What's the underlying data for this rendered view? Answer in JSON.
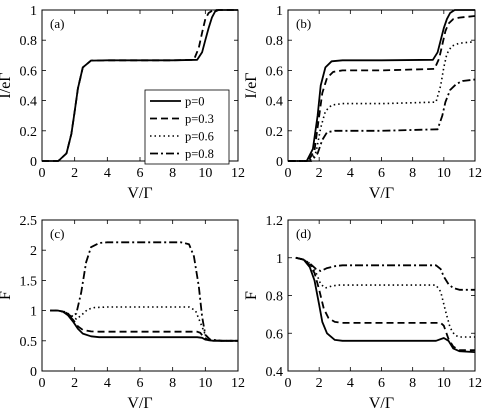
{
  "chart_data": [
    {
      "type": "line",
      "panel_label": "(a)",
      "xlabel": "V/Γ",
      "ylabel": "I/eΓ",
      "xlim": [
        0,
        12
      ],
      "ylim": [
        0,
        1
      ],
      "xticks": [
        "0",
        "2",
        "4",
        "6",
        "8",
        "10",
        "12"
      ],
      "yticks": [
        "0",
        "0.2",
        "0.4",
        "0.6",
        "0.8",
        "1"
      ],
      "legend": {
        "position": "lower-right",
        "entries": [
          {
            "label": "p=0",
            "style": "solid"
          },
          {
            "label": "p=0.3",
            "style": "dashed"
          },
          {
            "label": "p=0.6",
            "style": "dotted"
          },
          {
            "label": "p=0.8",
            "style": "dashdot"
          }
        ]
      },
      "series": [
        {
          "style": "solid",
          "x": [
            0,
            1.0,
            1.5,
            1.8,
            2.0,
            2.2,
            2.5,
            3.0,
            4,
            6,
            8,
            9.5,
            9.8,
            10.0,
            10.2,
            10.4,
            10.6,
            10.8,
            11,
            12
          ],
          "y": [
            0,
            0.0,
            0.05,
            0.18,
            0.33,
            0.48,
            0.62,
            0.665,
            0.667,
            0.667,
            0.667,
            0.67,
            0.72,
            0.8,
            0.88,
            0.95,
            0.99,
            1.0,
            1.0,
            1.0
          ]
        },
        {
          "style": "dashed",
          "x": [
            0,
            1.0,
            1.5,
            1.8,
            2.0,
            2.2,
            2.5,
            3.0,
            4,
            6,
            8,
            9.3,
            9.6,
            9.8,
            10.0,
            10.2,
            10.5,
            12
          ],
          "y": [
            0,
            0.0,
            0.05,
            0.18,
            0.33,
            0.48,
            0.62,
            0.665,
            0.667,
            0.667,
            0.667,
            0.67,
            0.75,
            0.85,
            0.94,
            0.98,
            1.0,
            1.0
          ]
        }
      ]
    },
    {
      "type": "line",
      "panel_label": "(b)",
      "xlabel": "V/Γ",
      "ylabel": "I/eΓ",
      "xlim": [
        0,
        12
      ],
      "ylim": [
        0,
        1
      ],
      "xticks": [
        "0",
        "2",
        "4",
        "6",
        "8",
        "10",
        "12"
      ],
      "yticks": [
        "0",
        "0.2",
        "0.4",
        "0.6",
        "0.8",
        "1"
      ],
      "series": [
        {
          "style": "solid",
          "x": [
            0,
            1.2,
            1.6,
            1.9,
            2.1,
            2.4,
            2.8,
            3.5,
            6,
            9.3,
            9.6,
            9.8,
            10.0,
            10.2,
            10.4,
            10.7,
            11,
            12
          ],
          "y": [
            0,
            0.0,
            0.08,
            0.3,
            0.5,
            0.62,
            0.66,
            0.667,
            0.667,
            0.67,
            0.72,
            0.8,
            0.88,
            0.94,
            0.98,
            1.0,
            1.0,
            1.0
          ]
        },
        {
          "style": "dashed",
          "x": [
            0,
            1.3,
            1.7,
            2.0,
            2.2,
            2.5,
            2.9,
            3.5,
            6,
            9.4,
            9.7,
            9.9,
            10.1,
            10.3,
            10.6,
            11,
            12
          ],
          "y": [
            0,
            0.0,
            0.07,
            0.3,
            0.45,
            0.55,
            0.59,
            0.6,
            0.6,
            0.61,
            0.68,
            0.77,
            0.86,
            0.91,
            0.94,
            0.95,
            0.96
          ]
        },
        {
          "style": "dotted",
          "x": [
            0,
            1.4,
            1.8,
            2.1,
            2.4,
            2.8,
            3.5,
            6,
            9.5,
            9.8,
            10.0,
            10.2,
            10.5,
            11,
            12
          ],
          "y": [
            0,
            0.0,
            0.06,
            0.22,
            0.33,
            0.37,
            0.38,
            0.38,
            0.39,
            0.5,
            0.62,
            0.71,
            0.76,
            0.78,
            0.79
          ]
        },
        {
          "style": "dashdot",
          "x": [
            0,
            1.5,
            1.9,
            2.2,
            2.5,
            3.0,
            3.5,
            6,
            9.6,
            9.9,
            10.1,
            10.4,
            10.8,
            11.2,
            12
          ],
          "y": [
            0,
            0.0,
            0.05,
            0.14,
            0.19,
            0.2,
            0.2,
            0.2,
            0.21,
            0.3,
            0.39,
            0.47,
            0.51,
            0.53,
            0.54
          ]
        }
      ]
    },
    {
      "type": "line",
      "panel_label": "(c)",
      "xlabel": "V/Γ",
      "ylabel": "F",
      "xlim": [
        0,
        12
      ],
      "ylim": [
        0,
        2.5
      ],
      "xticks": [
        "0",
        "2",
        "4",
        "6",
        "8",
        "10",
        "12"
      ],
      "yticks": [
        "0",
        "0.5",
        "1",
        "1.5",
        "2",
        "2.5"
      ],
      "series": [
        {
          "style": "solid",
          "x": [
            0.5,
            1.0,
            1.3,
            1.6,
            1.9,
            2.2,
            2.5,
            3.0,
            3.5,
            6,
            9.5,
            9.8,
            10.0,
            10.5,
            11,
            12
          ],
          "y": [
            1.0,
            1.0,
            0.98,
            0.92,
            0.82,
            0.7,
            0.62,
            0.575,
            0.56,
            0.56,
            0.56,
            0.55,
            0.52,
            0.5,
            0.5,
            0.5
          ]
        },
        {
          "style": "dashed",
          "x": [
            0.5,
            1.0,
            1.3,
            1.6,
            1.9,
            2.2,
            2.5,
            3.0,
            3.5,
            6,
            9.5,
            9.7,
            9.9,
            10.2,
            11,
            12
          ],
          "y": [
            1.0,
            1.0,
            0.98,
            0.93,
            0.85,
            0.74,
            0.68,
            0.655,
            0.65,
            0.65,
            0.65,
            0.63,
            0.56,
            0.51,
            0.5,
            0.5
          ]
        },
        {
          "style": "dotted",
          "x": [
            0.5,
            1.0,
            1.4,
            1.8,
            2.1,
            2.4,
            2.8,
            3.2,
            4,
            6,
            9.0,
            9.4,
            9.7,
            10.0,
            10.3,
            11,
            12
          ],
          "y": [
            1.0,
            1.0,
            0.98,
            0.92,
            0.86,
            0.92,
            1.02,
            1.05,
            1.06,
            1.06,
            1.06,
            1.0,
            0.8,
            0.6,
            0.52,
            0.5,
            0.5
          ]
        },
        {
          "style": "dashdot",
          "x": [
            0.5,
            1.0,
            1.4,
            1.8,
            2.1,
            2.4,
            2.7,
            3.0,
            3.5,
            4,
            6,
            8.5,
            9.0,
            9.3,
            9.6,
            9.8,
            10.0,
            10.3,
            11,
            12
          ],
          "y": [
            1.0,
            1.0,
            0.98,
            0.9,
            0.95,
            1.3,
            1.8,
            2.05,
            2.12,
            2.13,
            2.13,
            2.13,
            2.1,
            1.9,
            1.4,
            0.9,
            0.6,
            0.52,
            0.5,
            0.5
          ]
        }
      ]
    },
    {
      "type": "line",
      "panel_label": "(d)",
      "xlabel": "V/Γ",
      "ylabel": "F",
      "xlim": [
        0,
        12
      ],
      "ylim": [
        0.4,
        1.2
      ],
      "xticks": [
        "0",
        "2",
        "4",
        "6",
        "8",
        "10",
        "12"
      ],
      "yticks": [
        "0.4",
        "0.6",
        "0.8",
        "1",
        "1.2"
      ],
      "series": [
        {
          "style": "solid",
          "x": [
            0.5,
            1.0,
            1.4,
            1.7,
            2.0,
            2.2,
            2.5,
            3.0,
            3.5,
            6,
            9.5,
            10.0,
            10.3,
            10.6,
            11,
            12
          ],
          "y": [
            1.0,
            0.99,
            0.95,
            0.88,
            0.75,
            0.66,
            0.6,
            0.565,
            0.56,
            0.56,
            0.56,
            0.575,
            0.56,
            0.52,
            0.505,
            0.5
          ]
        },
        {
          "style": "dashed",
          "x": [
            0.5,
            1.0,
            1.4,
            1.7,
            2.0,
            2.3,
            2.6,
            3.0,
            3.5,
            6,
            9.5,
            9.8,
            10.0,
            10.3,
            10.6,
            11,
            12
          ],
          "y": [
            1.0,
            0.99,
            0.96,
            0.92,
            0.83,
            0.73,
            0.68,
            0.66,
            0.655,
            0.655,
            0.655,
            0.655,
            0.64,
            0.57,
            0.53,
            0.51,
            0.51
          ]
        },
        {
          "style": "dotted",
          "x": [
            0.5,
            1.0,
            1.4,
            1.8,
            2.1,
            2.4,
            2.8,
            3.2,
            4,
            6,
            9.5,
            9.8,
            10.1,
            10.4,
            10.7,
            11,
            12
          ],
          "y": [
            1.0,
            0.99,
            0.97,
            0.92,
            0.86,
            0.84,
            0.85,
            0.855,
            0.855,
            0.855,
            0.855,
            0.82,
            0.72,
            0.63,
            0.59,
            0.58,
            0.58
          ]
        },
        {
          "style": "dashdot",
          "x": [
            0.5,
            1.0,
            1.4,
            1.8,
            2.1,
            2.5,
            3.0,
            3.5,
            4,
            6,
            9.5,
            9.8,
            10.0,
            10.3,
            10.6,
            11,
            12
          ],
          "y": [
            1.0,
            0.99,
            0.97,
            0.94,
            0.93,
            0.945,
            0.955,
            0.96,
            0.96,
            0.96,
            0.96,
            0.94,
            0.9,
            0.86,
            0.84,
            0.83,
            0.83
          ]
        }
      ]
    }
  ]
}
